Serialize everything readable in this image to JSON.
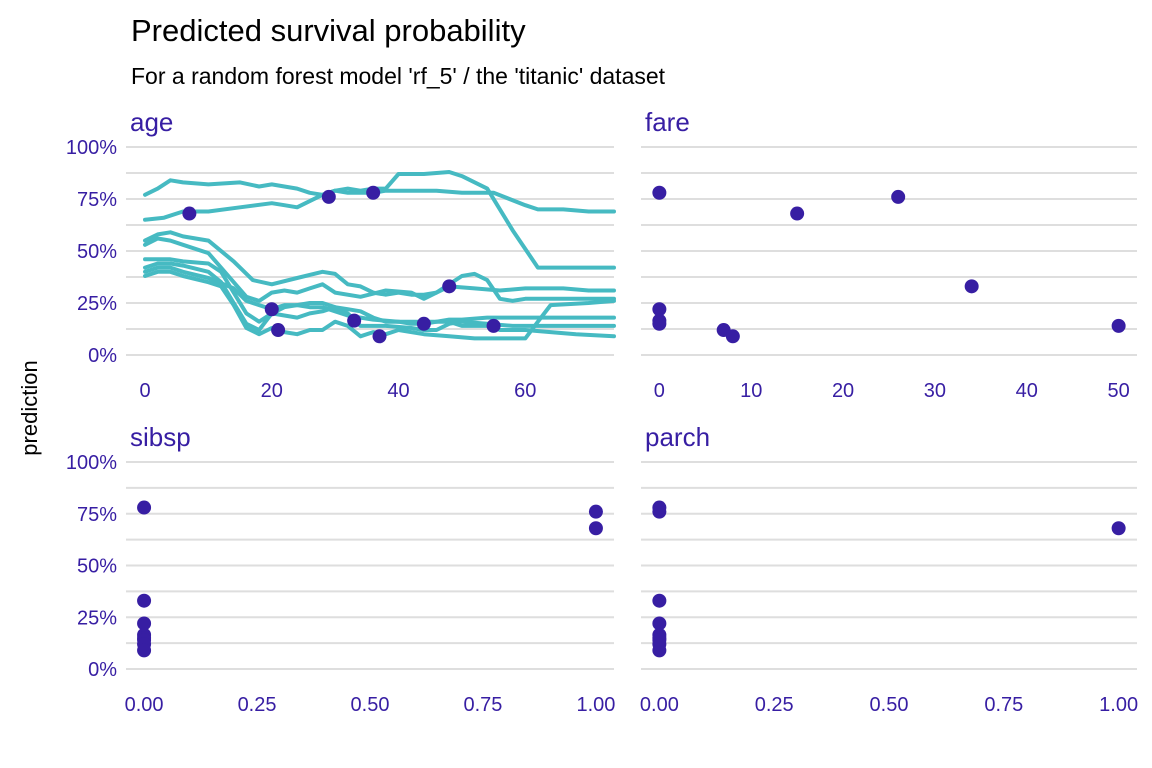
{
  "colors": {
    "text": "#371ea3",
    "point": "#371ea3",
    "line": "#46bac2",
    "grid": "#dedede",
    "title": "#000000"
  },
  "chart_data": {
    "type": "line",
    "title": "Predicted survival probability",
    "subtitle": "For a random forest model 'rf_5' / the 'titanic' dataset",
    "ylabel": "prediction",
    "ylim": [
      0,
      1
    ],
    "yticks": [
      0,
      0.25,
      0.5,
      0.75,
      1.0
    ],
    "yticklabels": [
      "0%",
      "25%",
      "50%",
      "75%",
      "100%"
    ],
    "panels": [
      {
        "name": "age",
        "xlim": [
          -3,
          74
        ],
        "xticks": [
          0,
          20,
          40,
          60
        ],
        "xticklabels": [
          "0",
          "20",
          "40",
          "60"
        ],
        "series": [
          {
            "x": [
              0,
              2,
              4,
              6,
              10,
              15,
              18,
              20,
              22,
              24,
              26,
              28,
              30,
              32,
              34,
              36,
              38,
              42,
              46,
              50,
              55,
              60,
              62,
              66,
              70,
              74
            ],
            "y": [
              0.77,
              0.8,
              0.84,
              0.83,
              0.82,
              0.83,
              0.81,
              0.82,
              0.81,
              0.8,
              0.78,
              0.77,
              0.79,
              0.78,
              0.78,
              0.78,
              0.79,
              0.79,
              0.79,
              0.78,
              0.78,
              0.72,
              0.7,
              0.7,
              0.69,
              0.69
            ]
          },
          {
            "x": [
              0,
              3,
              6,
              10,
              15,
              20,
              22,
              24,
              26,
              28,
              30,
              32,
              34,
              36,
              38,
              40,
              44,
              48,
              50,
              54,
              58,
              62,
              66,
              70,
              74
            ],
            "y": [
              0.65,
              0.66,
              0.69,
              0.69,
              0.71,
              0.73,
              0.72,
              0.71,
              0.74,
              0.77,
              0.79,
              0.8,
              0.79,
              0.8,
              0.8,
              0.87,
              0.87,
              0.88,
              0.86,
              0.8,
              0.6,
              0.42,
              0.42,
              0.42,
              0.42
            ]
          },
          {
            "x": [
              0,
              2,
              4,
              6,
              10,
              14,
              17,
              20,
              24,
              28,
              30,
              32,
              34,
              36,
              38,
              40,
              42,
              44,
              46,
              48,
              52,
              56,
              60,
              66,
              70,
              74
            ],
            "y": [
              0.55,
              0.58,
              0.59,
              0.57,
              0.55,
              0.45,
              0.36,
              0.34,
              0.37,
              0.4,
              0.39,
              0.34,
              0.33,
              0.3,
              0.29,
              0.3,
              0.29,
              0.29,
              0.3,
              0.33,
              0.32,
              0.31,
              0.32,
              0.32,
              0.31,
              0.31
            ]
          },
          {
            "x": [
              0,
              2,
              4,
              6,
              10,
              14,
              16,
              18,
              20,
              22,
              24,
              26,
              28,
              30,
              34,
              38,
              42,
              44,
              46,
              48,
              50,
              52,
              54,
              56,
              58,
              60,
              62,
              66,
              70,
              74
            ],
            "y": [
              0.53,
              0.56,
              0.55,
              0.53,
              0.49,
              0.35,
              0.28,
              0.26,
              0.3,
              0.31,
              0.3,
              0.32,
              0.34,
              0.3,
              0.28,
              0.31,
              0.3,
              0.27,
              0.3,
              0.34,
              0.38,
              0.39,
              0.36,
              0.27,
              0.26,
              0.27,
              0.27,
              0.27,
              0.27,
              0.27
            ]
          },
          {
            "x": [
              0,
              2,
              4,
              6,
              10,
              12,
              14,
              16,
              18,
              20,
              22,
              24,
              26,
              28,
              30,
              32,
              34,
              36,
              40,
              44,
              48,
              50,
              54,
              56,
              60,
              64,
              68,
              74
            ],
            "y": [
              0.46,
              0.46,
              0.46,
              0.45,
              0.44,
              0.4,
              0.3,
              0.2,
              0.16,
              0.2,
              0.23,
              0.24,
              0.23,
              0.23,
              0.21,
              0.19,
              0.18,
              0.17,
              0.16,
              0.16,
              0.16,
              0.14,
              0.14,
              0.12,
              0.12,
              0.11,
              0.1,
              0.09
            ]
          },
          {
            "x": [
              0,
              2,
              4,
              6,
              10,
              12,
              14,
              16,
              18,
              20,
              22,
              24,
              26,
              28,
              30,
              32,
              34,
              38,
              42,
              44,
              46,
              48,
              50,
              54,
              58,
              62,
              64,
              68,
              74
            ],
            "y": [
              0.42,
              0.44,
              0.44,
              0.43,
              0.4,
              0.35,
              0.25,
              0.15,
              0.12,
              0.2,
              0.19,
              0.18,
              0.2,
              0.21,
              0.23,
              0.2,
              0.14,
              0.14,
              0.13,
              0.12,
              0.12,
              0.15,
              0.16,
              0.15,
              0.14,
              0.14,
              0.14,
              0.14,
              0.14
            ]
          },
          {
            "x": [
              0,
              2,
              4,
              6,
              10,
              12,
              14,
              16,
              18,
              20,
              22,
              24,
              26,
              28,
              30,
              32,
              34,
              36,
              38,
              40,
              44,
              48,
              52,
              56,
              60,
              62,
              64,
              70,
              74
            ],
            "y": [
              0.38,
              0.4,
              0.4,
              0.38,
              0.35,
              0.33,
              0.24,
              0.13,
              0.1,
              0.13,
              0.11,
              0.1,
              0.12,
              0.12,
              0.16,
              0.14,
              0.09,
              0.11,
              0.1,
              0.12,
              0.1,
              0.09,
              0.08,
              0.08,
              0.08,
              0.16,
              0.24,
              0.25,
              0.26
            ]
          },
          {
            "x": [
              0,
              2,
              4,
              6,
              10,
              14,
              16,
              18,
              20,
              22,
              24,
              26,
              28,
              30,
              32,
              34,
              36,
              38,
              40,
              42,
              44,
              48,
              50,
              54,
              58,
              62,
              66,
              70,
              74
            ],
            "y": [
              0.4,
              0.42,
              0.42,
              0.4,
              0.37,
              0.32,
              0.26,
              0.24,
              0.22,
              0.24,
              0.24,
              0.25,
              0.25,
              0.23,
              0.22,
              0.21,
              0.18,
              0.16,
              0.16,
              0.15,
              0.15,
              0.17,
              0.17,
              0.18,
              0.18,
              0.18,
              0.18,
              0.18,
              0.18
            ]
          }
        ],
        "points": {
          "x": [
            7,
            20,
            21,
            29,
            33,
            36,
            37,
            44,
            48,
            55
          ],
          "y": [
            0.68,
            0.22,
            0.12,
            0.76,
            0.165,
            0.78,
            0.09,
            0.15,
            0.33,
            0.14
          ]
        }
      },
      {
        "name": "fare",
        "xlim": [
          -2,
          52
        ],
        "xticks": [
          0,
          10,
          20,
          30,
          40,
          50
        ],
        "xticklabels": [
          "0",
          "10",
          "20",
          "30",
          "40",
          "50"
        ],
        "series": [],
        "points": {
          "x": [
            0,
            0,
            0,
            0,
            7,
            8,
            15,
            26,
            34,
            50
          ],
          "y": [
            0.78,
            0.22,
            0.165,
            0.15,
            0.12,
            0.09,
            0.68,
            0.76,
            0.33,
            0.14
          ]
        }
      },
      {
        "name": "sibsp",
        "xlim": [
          -0.04,
          1.04
        ],
        "xticks": [
          0,
          0.25,
          0.5,
          0.75,
          1.0
        ],
        "xticklabels": [
          "0.00",
          "0.25",
          "0.50",
          "0.75",
          "1.00"
        ],
        "series": [],
        "points": {
          "x": [
            0,
            0,
            0,
            0,
            0,
            0,
            0,
            0,
            1,
            1
          ],
          "y": [
            0.78,
            0.33,
            0.22,
            0.165,
            0.15,
            0.14,
            0.12,
            0.09,
            0.76,
            0.68
          ]
        }
      },
      {
        "name": "parch",
        "xlim": [
          -0.04,
          1.04
        ],
        "xticks": [
          0,
          0.25,
          0.5,
          0.75,
          1.0
        ],
        "xticklabels": [
          "0.00",
          "0.25",
          "0.50",
          "0.75",
          "1.00"
        ],
        "series": [],
        "points": {
          "x": [
            0,
            0,
            0,
            0,
            0,
            0,
            0,
            0,
            0,
            1
          ],
          "y": [
            0.78,
            0.76,
            0.33,
            0.22,
            0.165,
            0.15,
            0.12,
            0.09,
            0.14,
            0.68
          ]
        }
      }
    ]
  }
}
